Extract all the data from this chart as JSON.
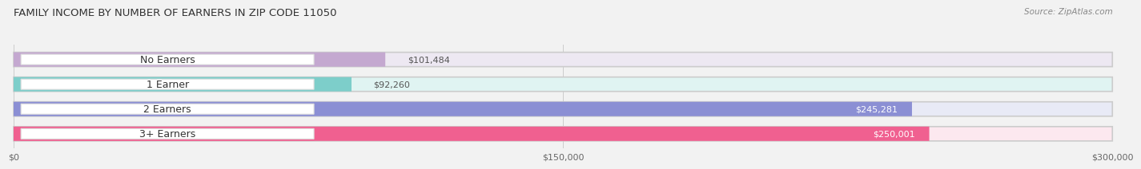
{
  "title": "FAMILY INCOME BY NUMBER OF EARNERS IN ZIP CODE 11050",
  "source": "Source: ZipAtlas.com",
  "categories": [
    "No Earners",
    "1 Earner",
    "2 Earners",
    "3+ Earners"
  ],
  "values": [
    101484,
    92260,
    245281,
    250001
  ],
  "bar_colors": [
    "#c4a8d0",
    "#7dceca",
    "#8b8fd4",
    "#f06090"
  ],
  "bar_bg_colors": [
    "#ede8f2",
    "#e0f4f2",
    "#e8eaf6",
    "#fce8ef"
  ],
  "label_colors_val": [
    "#555555",
    "#555555",
    "#ffffff",
    "#ffffff"
  ],
  "xlim": [
    0,
    300000
  ],
  "xtick_labels": [
    "$0",
    "$150,000",
    "$300,000"
  ],
  "background_color": "#f2f2f2",
  "bar_height": 0.58,
  "title_fontsize": 9.5,
  "label_fontsize": 8,
  "value_fontsize": 8,
  "category_fontsize": 9
}
